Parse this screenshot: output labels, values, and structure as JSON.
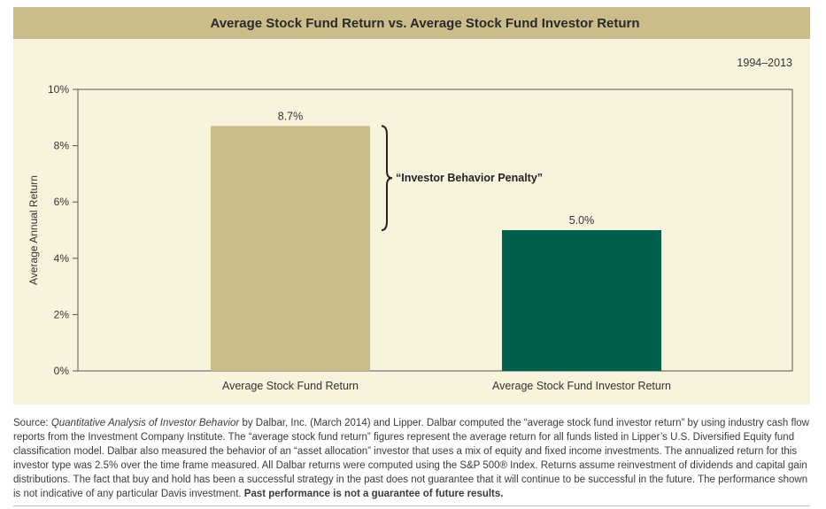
{
  "chart_data": {
    "type": "bar",
    "title": "Average Stock Fund Return vs. Average Stock Fund Investor Return",
    "subtitle": "1994–2013",
    "ylabel": "Average Annual Return",
    "xlabel": "",
    "categories": [
      "Average Stock Fund Return",
      "Average Stock Fund Investor Return"
    ],
    "values": [
      8.7,
      5.0
    ],
    "value_labels": [
      "8.7%",
      "5.0%"
    ],
    "ylim": [
      0,
      10
    ],
    "yticks": [
      0,
      2,
      4,
      6,
      8,
      10
    ],
    "ytick_labels": [
      "0%",
      "2%",
      "4%",
      "6%",
      "8%",
      "10%"
    ],
    "bar_colors": [
      "#cbbd8a",
      "#005f4b"
    ],
    "annotation": "“Investor Behavior Penalty”",
    "grid": false,
    "legend": "none"
  },
  "source": {
    "prefix": "Source: ",
    "italic_title": "Quantitative Analysis of Investor Behavior",
    "body": " by Dalbar, Inc. (March 2014) and Lipper. Dalbar computed the “average stock fund investor return” by using industry cash flow reports from the Investment Company Institute. The “average stock fund return” figures represent the average return for all funds listed in Lipper’s U.S. Diversified Equity fund classification model. Dalbar also measured the behavior of an “asset allocation” investor that uses a mix of equity and fixed income investments. The annualized return for this investor type was 2.5% over the time frame measured. All Dalbar returns were computed using the S&P 500® Index. Returns assume reinvestment of dividends and capital gain distributions. The fact that buy and hold has been a successful strategy in the past does not guarantee that it will continue to be successful in the future. The performance shown is not indicative of any particular Davis investment. ",
    "bold_end": "Past performance is not a guarantee of future results."
  }
}
